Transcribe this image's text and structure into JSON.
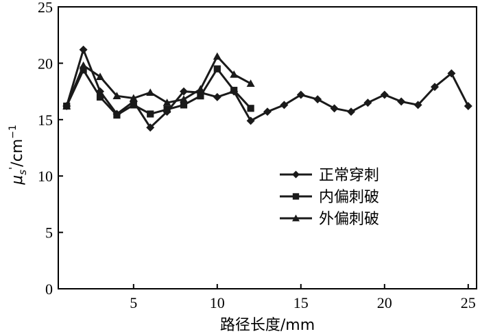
{
  "chart_data": {
    "type": "line",
    "xlabel": "路径长度/mm",
    "ylabel_main": "μ",
    "ylabel_sub": "s",
    "ylabel_prime": "'",
    "ylabel_unit": "/cm",
    "ylabel_exp": "−1",
    "xlim": [
      0.5,
      25.5
    ],
    "ylim": [
      0,
      25
    ],
    "x_ticks": [
      5,
      10,
      15,
      20,
      25
    ],
    "y_ticks": [
      0,
      5,
      10,
      15,
      20,
      25
    ],
    "x_tick_labels": [
      "5",
      "10",
      "15",
      "20",
      "25"
    ],
    "y_tick_labels": [
      "0",
      "5",
      "10",
      "15",
      "20",
      "25"
    ],
    "grid": false,
    "legend_position": "middle-right",
    "series": [
      {
        "name": "正常穿刺",
        "marker": "diamond",
        "x": [
          1,
          2,
          3,
          4,
          5,
          6,
          7,
          8,
          9,
          10,
          11,
          12,
          13,
          14,
          15,
          16,
          17,
          18,
          19,
          20,
          21,
          22,
          23,
          24,
          25
        ],
        "y": [
          16.2,
          21.2,
          17.5,
          15.5,
          16.6,
          14.3,
          15.7,
          17.5,
          17.4,
          17.0,
          17.5,
          14.9,
          15.7,
          16.3,
          17.2,
          16.8,
          16.0,
          15.7,
          16.5,
          17.2,
          16.6,
          16.3,
          17.9,
          19.1,
          16.2
        ]
      },
      {
        "name": "内偏刺破",
        "marker": "square",
        "x": [
          1,
          2,
          3,
          4,
          5,
          6,
          7,
          8,
          9,
          10,
          11,
          12
        ],
        "y": [
          16.2,
          19.4,
          17.0,
          15.4,
          16.3,
          15.5,
          15.9,
          16.3,
          17.1,
          19.5,
          17.6,
          16.0
        ]
      },
      {
        "name": "外偏刺破",
        "marker": "triangle",
        "x": [
          1,
          2,
          3,
          4,
          5,
          6,
          7,
          8,
          9,
          10,
          11,
          12
        ],
        "y": [
          16.2,
          19.8,
          18.8,
          17.1,
          16.9,
          17.4,
          16.5,
          16.8,
          17.7,
          20.6,
          19.0,
          18.2
        ]
      }
    ]
  }
}
